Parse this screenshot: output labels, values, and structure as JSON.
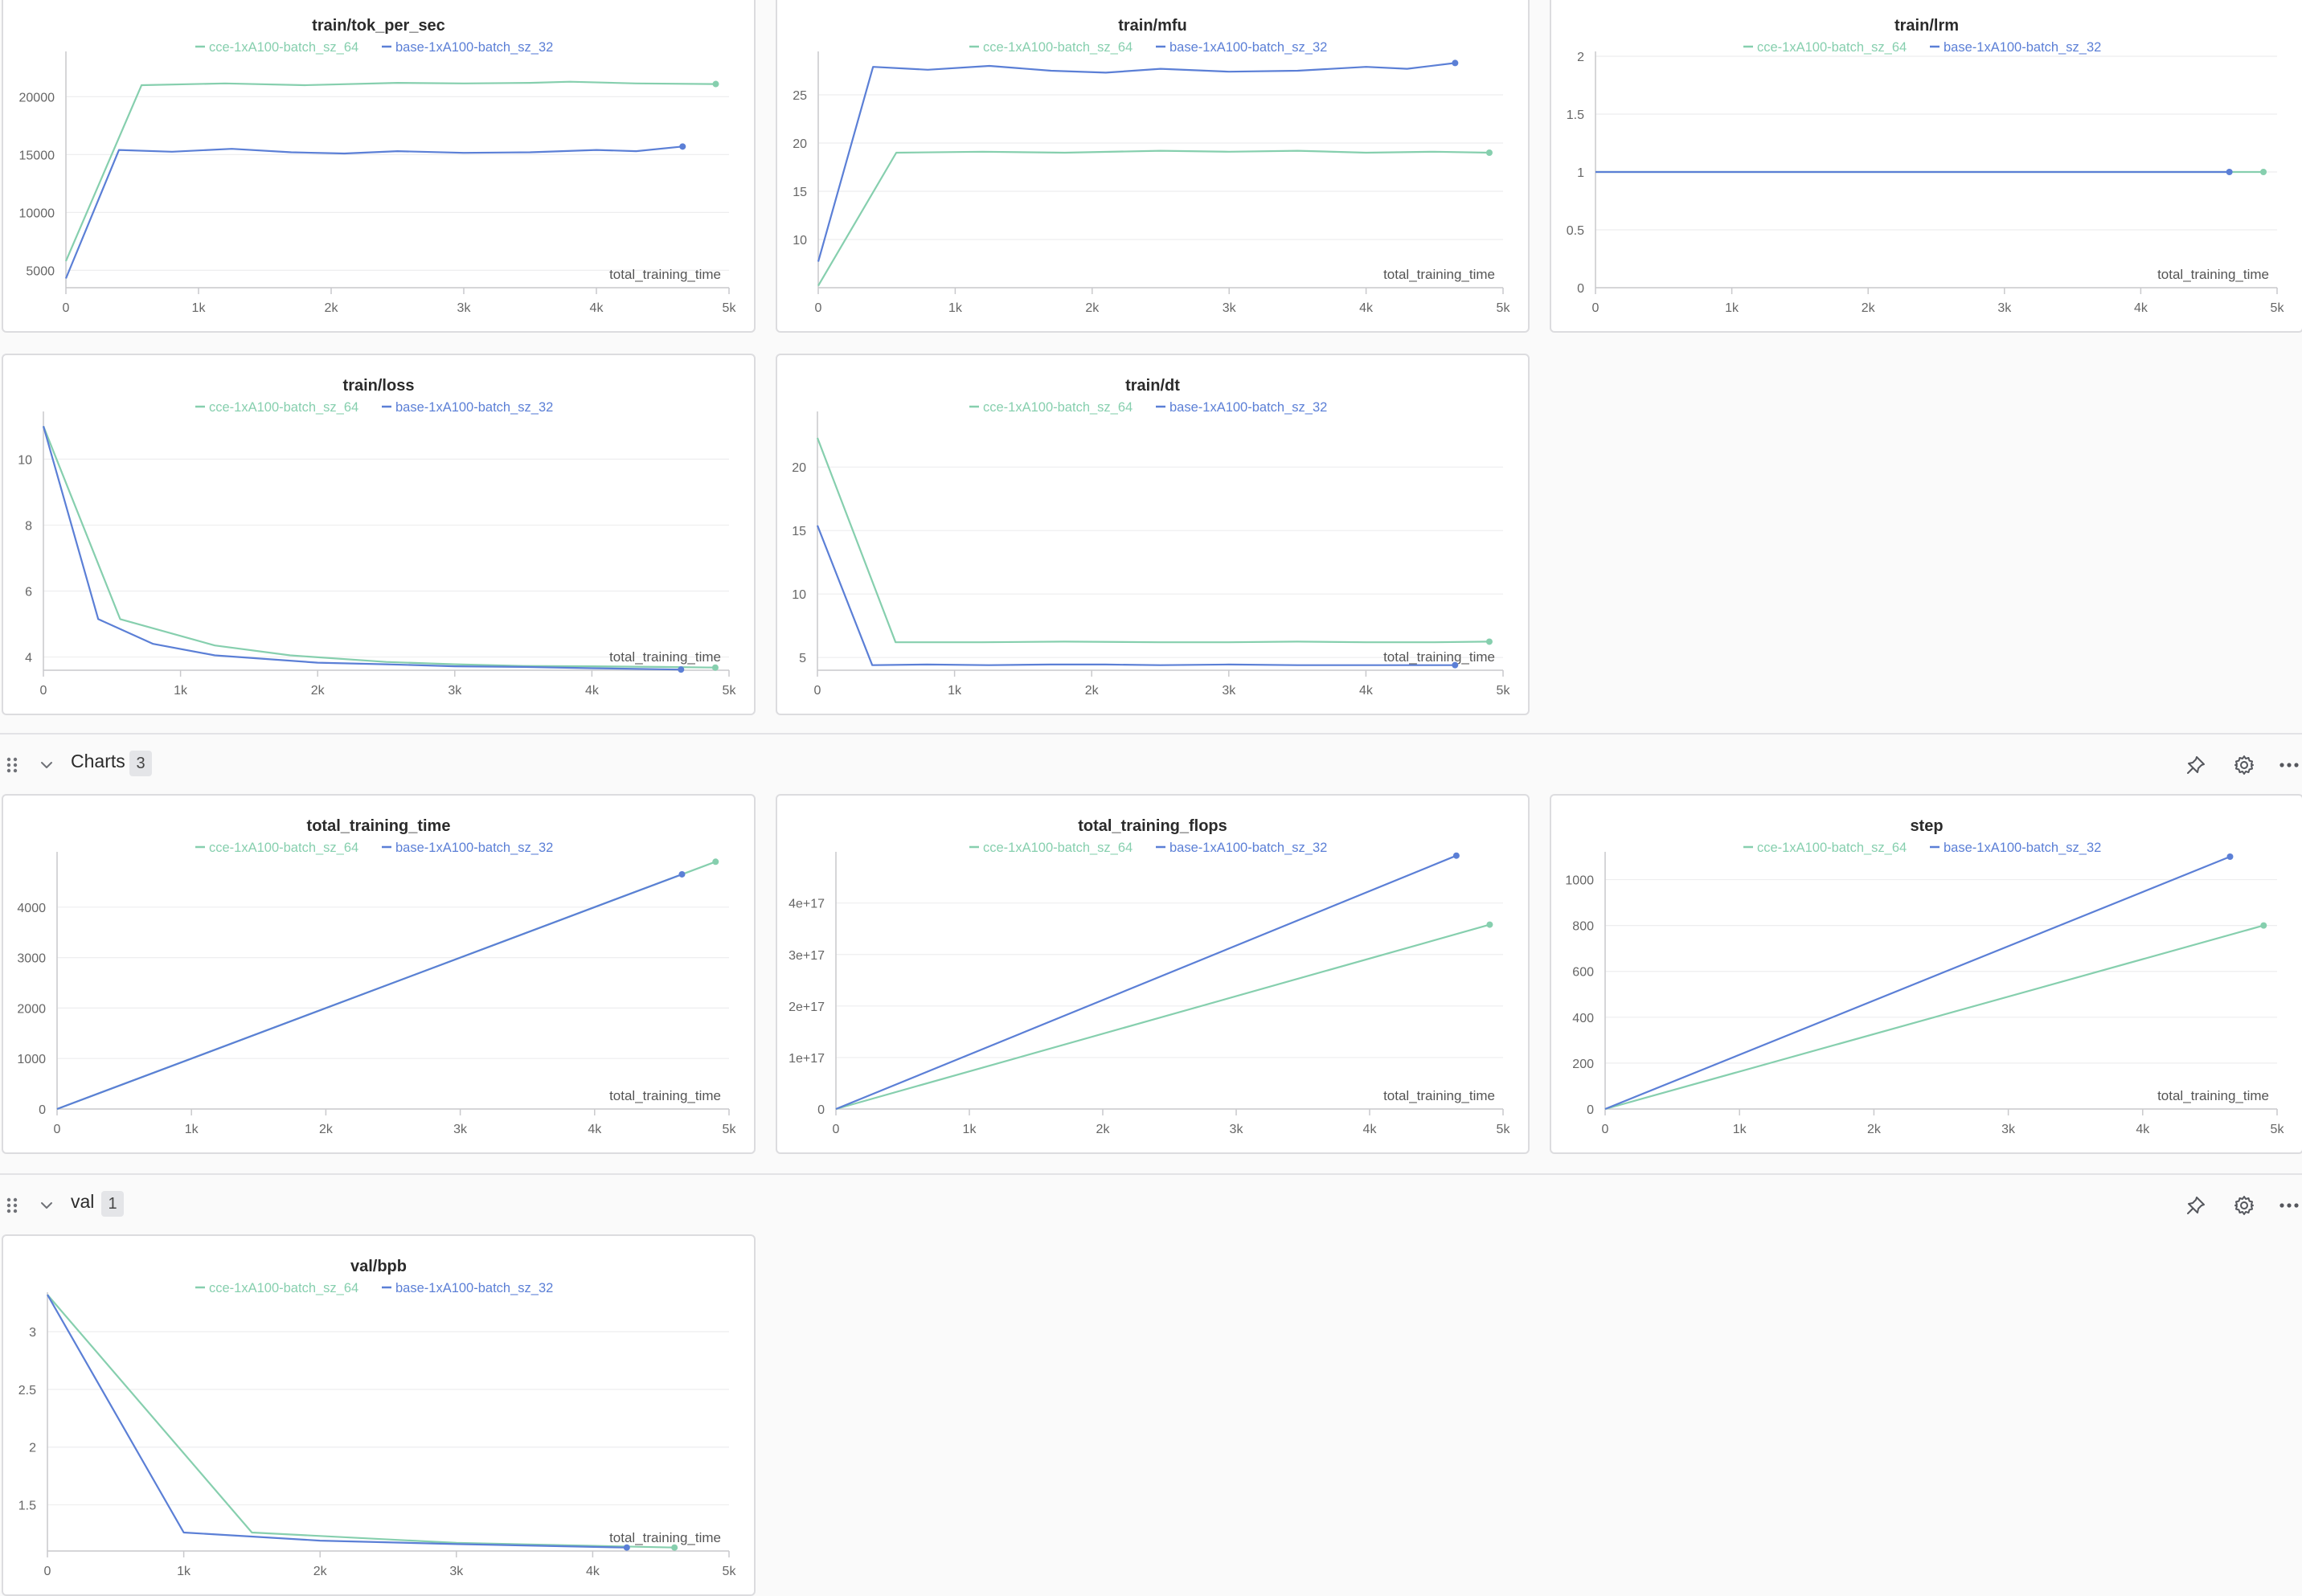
{
  "colors": {
    "cce": "#86cfae",
    "base": "#5b7fd6",
    "grid": "#eeeeef",
    "axis": "#c9c9cc",
    "tick": "#666666"
  },
  "legend": {
    "cce": "cce-1xA100-batch_sz_64",
    "base": "base-1xA100-batch_sz_32"
  },
  "x_axis_label": "total_training_time",
  "sections": [
    {
      "title": "Charts",
      "count": "3",
      "icons": [
        "drag-handle-icon",
        "chevron-down-icon",
        "pin-icon",
        "gear-icon",
        "more-horizontal-icon"
      ]
    },
    {
      "title": "val",
      "count": "1",
      "icons": [
        "drag-handle-icon",
        "chevron-down-icon",
        "pin-icon",
        "gear-icon",
        "more-horizontal-icon"
      ]
    }
  ],
  "chart_data": [
    {
      "type": "line",
      "title": "train/tok_per_sec",
      "xlabel": "total_training_time",
      "ylabel": "",
      "xlim": [
        0,
        5000
      ],
      "ylim": [
        3500,
        23500
      ],
      "xticks": [
        0,
        1000,
        2000,
        3000,
        4000,
        5000
      ],
      "xtick_labels": [
        "0",
        "1k",
        "2k",
        "3k",
        "4k",
        "5k"
      ],
      "yticks": [
        5000,
        10000,
        15000,
        20000
      ],
      "ytick_labels": [
        "5000",
        "10000",
        "15000",
        "20000"
      ],
      "grid": true,
      "legend_position": "top-center",
      "series": [
        {
          "name": "cce-1xA100-batch_sz_64",
          "color": "#86cfae",
          "x": [
            0,
            570,
            1200,
            1800,
            2500,
            3000,
            3500,
            3800,
            4300,
            4900
          ],
          "y": [
            5800,
            21000,
            21150,
            21000,
            21200,
            21150,
            21200,
            21300,
            21150,
            21100
          ]
        },
        {
          "name": "base-1xA100-batch_sz_32",
          "color": "#5b7fd6",
          "x": [
            0,
            400,
            800,
            1250,
            1700,
            2100,
            2500,
            3000,
            3500,
            4000,
            4300,
            4650
          ],
          "y": [
            4300,
            15400,
            15250,
            15500,
            15200,
            15100,
            15300,
            15150,
            15200,
            15400,
            15300,
            15700
          ]
        }
      ]
    },
    {
      "type": "line",
      "title": "train/mfu",
      "xlabel": "total_training_time",
      "ylabel": "",
      "xlim": [
        0,
        5000
      ],
      "ylim": [
        5,
        29
      ],
      "xticks": [
        0,
        1000,
        2000,
        3000,
        4000,
        5000
      ],
      "xtick_labels": [
        "0",
        "1k",
        "2k",
        "3k",
        "4k",
        "5k"
      ],
      "yticks": [
        10,
        15,
        20,
        25
      ],
      "ytick_labels": [
        "10",
        "15",
        "20",
        "25"
      ],
      "grid": true,
      "legend_position": "top-center",
      "series": [
        {
          "name": "cce-1xA100-batch_sz_64",
          "color": "#86cfae",
          "x": [
            0,
            570,
            1200,
            1800,
            2500,
            3000,
            3500,
            4000,
            4500,
            4900
          ],
          "y": [
            5.2,
            19.0,
            19.1,
            19.0,
            19.2,
            19.1,
            19.2,
            19.0,
            19.1,
            19.0
          ]
        },
        {
          "name": "base-1xA100-batch_sz_32",
          "color": "#5b7fd6",
          "x": [
            0,
            400,
            800,
            1250,
            1700,
            2100,
            2500,
            3000,
            3500,
            4000,
            4300,
            4650
          ],
          "y": [
            7.7,
            27.9,
            27.6,
            28.0,
            27.5,
            27.3,
            27.7,
            27.4,
            27.5,
            27.9,
            27.7,
            28.3
          ]
        }
      ]
    },
    {
      "type": "line",
      "title": "train/lrm",
      "xlabel": "total_training_time",
      "ylabel": "",
      "xlim": [
        0,
        5000
      ],
      "ylim": [
        0,
        2
      ],
      "xticks": [
        0,
        1000,
        2000,
        3000,
        4000,
        5000
      ],
      "xtick_labels": [
        "0",
        "1k",
        "2k",
        "3k",
        "4k",
        "5k"
      ],
      "yticks": [
        0,
        0.5,
        1,
        1.5,
        2
      ],
      "ytick_labels": [
        "0",
        "0.5",
        "1",
        "1.5",
        "2"
      ],
      "grid": true,
      "legend_position": "top-center",
      "series": [
        {
          "name": "cce-1xA100-batch_sz_64",
          "color": "#86cfae",
          "x": [
            0,
            4900
          ],
          "y": [
            1,
            1
          ]
        },
        {
          "name": "base-1xA100-batch_sz_32",
          "color": "#5b7fd6",
          "x": [
            0,
            4650
          ],
          "y": [
            1,
            1
          ]
        }
      ]
    },
    {
      "type": "line",
      "title": "train/loss",
      "xlabel": "total_training_time",
      "ylabel": "",
      "xlim": [
        0,
        5000
      ],
      "ylim": [
        3.6,
        11.3
      ],
      "xticks": [
        0,
        1000,
        2000,
        3000,
        4000,
        5000
      ],
      "xtick_labels": [
        "0",
        "1k",
        "2k",
        "3k",
        "4k",
        "5k"
      ],
      "yticks": [
        4,
        6,
        8,
        10
      ],
      "ytick_labels": [
        "4",
        "6",
        "8",
        "10"
      ],
      "grid": true,
      "legend_position": "top-center",
      "series": [
        {
          "name": "cce-1xA100-batch_sz_64",
          "color": "#86cfae",
          "x": [
            0,
            560,
            1250,
            1800,
            2500,
            3000,
            3500,
            4000,
            4500,
            4900
          ],
          "y": [
            11.0,
            5.15,
            4.35,
            4.05,
            3.85,
            3.78,
            3.73,
            3.72,
            3.7,
            3.68
          ]
        },
        {
          "name": "base-1xA100-batch_sz_32",
          "color": "#5b7fd6",
          "x": [
            0,
            400,
            800,
            1250,
            2000,
            2500,
            3000,
            3500,
            4000,
            4650
          ],
          "y": [
            11.0,
            5.15,
            4.4,
            4.05,
            3.83,
            3.78,
            3.72,
            3.7,
            3.66,
            3.62
          ]
        }
      ]
    },
    {
      "type": "line",
      "title": "train/dt",
      "xlabel": "total_training_time",
      "ylabel": "",
      "xlim": [
        0,
        5000
      ],
      "ylim": [
        4,
        24
      ],
      "xticks": [
        0,
        1000,
        2000,
        3000,
        4000,
        5000
      ],
      "xtick_labels": [
        "0",
        "1k",
        "2k",
        "3k",
        "4k",
        "5k"
      ],
      "yticks": [
        5,
        10,
        15,
        20
      ],
      "ytick_labels": [
        "5",
        "10",
        "15",
        "20"
      ],
      "grid": true,
      "legend_position": "top-center",
      "series": [
        {
          "name": "cce-1xA100-batch_sz_64",
          "color": "#86cfae",
          "x": [
            0,
            570,
            1200,
            1800,
            2500,
            3000,
            3500,
            4000,
            4500,
            4900
          ],
          "y": [
            22.3,
            6.2,
            6.2,
            6.25,
            6.2,
            6.2,
            6.25,
            6.2,
            6.2,
            6.25
          ]
        },
        {
          "name": "base-1xA100-batch_sz_32",
          "color": "#5b7fd6",
          "x": [
            0,
            400,
            800,
            1250,
            1700,
            2100,
            2500,
            3000,
            3500,
            4000,
            4300,
            4650
          ],
          "y": [
            15.4,
            4.4,
            4.45,
            4.4,
            4.45,
            4.45,
            4.4,
            4.45,
            4.4,
            4.4,
            4.4,
            4.4
          ]
        }
      ]
    },
    {
      "type": "line",
      "title": "total_training_time",
      "xlabel": "total_training_time",
      "ylabel": "",
      "xlim": [
        0,
        5000
      ],
      "ylim": [
        0,
        5000
      ],
      "xticks": [
        0,
        1000,
        2000,
        3000,
        4000,
        5000
      ],
      "xtick_labels": [
        "0",
        "1k",
        "2k",
        "3k",
        "4k",
        "5k"
      ],
      "yticks": [
        0,
        1000,
        2000,
        3000,
        4000
      ],
      "ytick_labels": [
        "0",
        "1000",
        "2000",
        "3000",
        "4000"
      ],
      "grid": true,
      "legend_position": "top-center",
      "series": [
        {
          "name": "cce-1xA100-batch_sz_64",
          "color": "#86cfae",
          "x": [
            0,
            4900
          ],
          "y": [
            0,
            4900
          ]
        },
        {
          "name": "base-1xA100-batch_sz_32",
          "color": "#5b7fd6",
          "x": [
            0,
            4650
          ],
          "y": [
            0,
            4650
          ]
        }
      ]
    },
    {
      "type": "line",
      "title": "total_training_flops",
      "xlabel": "total_training_time",
      "ylabel": "",
      "xlim": [
        0,
        5000
      ],
      "ylim": [
        0,
        4.9e+17
      ],
      "xticks": [
        0,
        1000,
        2000,
        3000,
        4000,
        5000
      ],
      "xtick_labels": [
        "0",
        "1k",
        "2k",
        "3k",
        "4k",
        "5k"
      ],
      "yticks": [
        0,
        1e+17,
        2e+17,
        3e+17,
        4e+17
      ],
      "ytick_labels": [
        "0",
        "1e+17",
        "2e+17",
        "3e+17",
        "4e+17"
      ],
      "grid": true,
      "legend_position": "top-center",
      "series": [
        {
          "name": "cce-1xA100-batch_sz_64",
          "color": "#86cfae",
          "x": [
            0,
            4900
          ],
          "y": [
            0,
            3.58e+17
          ]
        },
        {
          "name": "base-1xA100-batch_sz_32",
          "color": "#5b7fd6",
          "x": [
            0,
            4650
          ],
          "y": [
            0,
            4.92e+17
          ]
        }
      ]
    },
    {
      "type": "line",
      "title": "step",
      "xlabel": "total_training_time",
      "ylabel": "",
      "xlim": [
        0,
        5000
      ],
      "ylim": [
        0,
        1100
      ],
      "xticks": [
        0,
        1000,
        2000,
        3000,
        4000,
        5000
      ],
      "xtick_labels": [
        "0",
        "1k",
        "2k",
        "3k",
        "4k",
        "5k"
      ],
      "yticks": [
        0,
        200,
        400,
        600,
        800,
        1000
      ],
      "ytick_labels": [
        "0",
        "200",
        "400",
        "600",
        "800",
        "1000"
      ],
      "grid": true,
      "legend_position": "top-center",
      "series": [
        {
          "name": "cce-1xA100-batch_sz_64",
          "color": "#86cfae",
          "x": [
            0,
            4900
          ],
          "y": [
            0,
            800
          ]
        },
        {
          "name": "base-1xA100-batch_sz_32",
          "color": "#5b7fd6",
          "x": [
            0,
            4650
          ],
          "y": [
            0,
            1100
          ]
        }
      ]
    },
    {
      "type": "line",
      "title": "val/bpb",
      "xlabel": "total_training_time",
      "ylabel": "",
      "xlim": [
        0,
        5000
      ],
      "ylim": [
        1.1,
        3.3
      ],
      "xticks": [
        0,
        1000,
        2000,
        3000,
        4000,
        5000
      ],
      "xtick_labels": [
        "0",
        "1k",
        "2k",
        "3k",
        "4k",
        "5k"
      ],
      "yticks": [
        1.5,
        2,
        2.5,
        3
      ],
      "ytick_labels": [
        "1.5",
        "2",
        "2.5",
        "3"
      ],
      "grid": true,
      "legend_position": "top-center",
      "series": [
        {
          "name": "cce-1xA100-batch_sz_64",
          "color": "#86cfae",
          "x": [
            0,
            1500,
            3000,
            4600
          ],
          "y": [
            3.32,
            1.26,
            1.17,
            1.13
          ]
        },
        {
          "name": "base-1xA100-batch_sz_32",
          "color": "#5b7fd6",
          "x": [
            0,
            1000,
            2000,
            3000,
            4250
          ],
          "y": [
            3.32,
            1.26,
            1.19,
            1.16,
            1.13
          ]
        }
      ]
    }
  ]
}
